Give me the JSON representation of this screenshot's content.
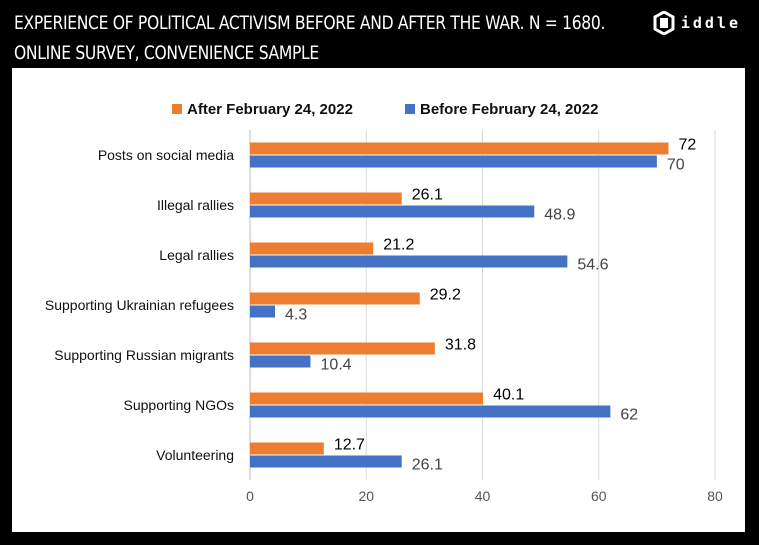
{
  "header": {
    "title_line1": "EXPERIENCE OF POLITICAL ACTIVISM BEFORE AND AFTER THE WAR. N = 1680.",
    "title_line2": "ONLINE SURVEY, CONVENIENCE SAMPLE"
  },
  "brand": {
    "name": "iddle",
    "logo_icon": "riddle-logo-icon"
  },
  "colors": {
    "after": "#ED7D31",
    "before": "#4472C4",
    "grid": "#D9D9D9",
    "axis": "#BFBFBF"
  },
  "chart_data": {
    "type": "bar",
    "orientation": "horizontal",
    "categories": [
      "Posts on social media",
      "Illegal rallies",
      "Legal rallies",
      "Supporting Ukrainian refugees",
      "Supporting Russian migrants",
      "Supporting NGOs",
      "Volunteering"
    ],
    "series": [
      {
        "name": "After February 24, 2022",
        "values": [
          72,
          26.1,
          21.2,
          29.2,
          31.8,
          40.1,
          12.7
        ],
        "labels": [
          "72",
          "26.1",
          "21.2",
          "29.2",
          "31.8",
          "40.1",
          "12.7"
        ]
      },
      {
        "name": "Before February 24, 2022",
        "values": [
          70,
          48.9,
          54.6,
          4.3,
          10.4,
          62,
          26.1
        ],
        "labels": [
          "70",
          "48.9",
          "54.6",
          "4.3",
          "10.4",
          "62",
          "26.1"
        ]
      }
    ],
    "xlim": [
      0,
      80
    ],
    "xticks": [
      "0",
      "20",
      "40",
      "60",
      "80"
    ],
    "grid": true,
    "legend_position": "top"
  }
}
